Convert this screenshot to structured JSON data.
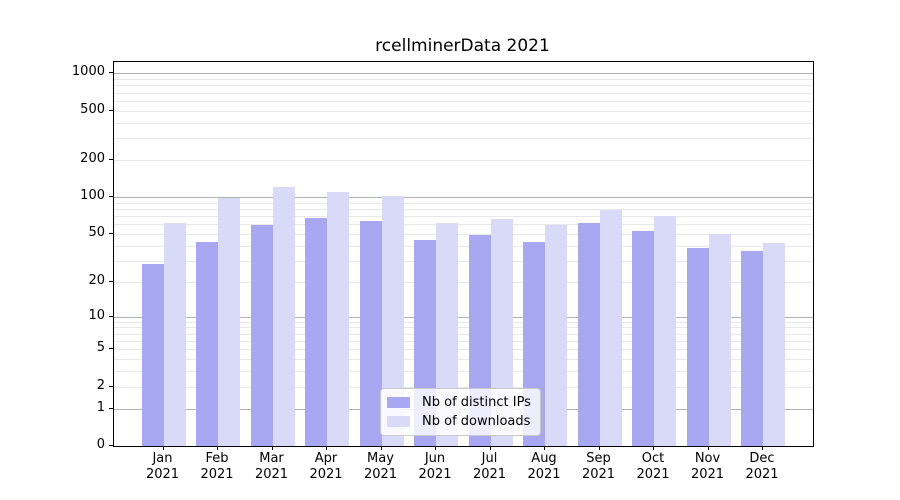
{
  "title": "rcellminerData 2021",
  "chart_data": {
    "type": "bar",
    "title": "rcellminerData 2021",
    "scale": "log1p",
    "months": [
      "Jan",
      "Feb",
      "Mar",
      "Apr",
      "May",
      "Jun",
      "Jul",
      "Aug",
      "Sep",
      "Oct",
      "Nov",
      "Dec"
    ],
    "year_label": "2021",
    "series": [
      {
        "name": "Nb of distinct IPs",
        "color": "#a7a7f2",
        "values": [
          28,
          43,
          59,
          68,
          64,
          45,
          49,
          43,
          61,
          53,
          38,
          36
        ]
      },
      {
        "name": "Nb of downloads",
        "color": "#d9d9f8",
        "values": [
          62,
          98,
          120,
          111,
          103,
          61,
          66,
          59,
          78,
          70,
          50,
          42
        ]
      }
    ],
    "y_ticks": [
      0,
      1,
      2,
      5,
      10,
      20,
      50,
      100,
      200,
      500,
      1000
    ],
    "major_gridlines": [
      1,
      10,
      100,
      1000
    ],
    "minor_gridlines": [
      2,
      3,
      4,
      5,
      6,
      7,
      8,
      9,
      20,
      30,
      40,
      50,
      60,
      70,
      80,
      90,
      200,
      300,
      400,
      500,
      600,
      700,
      800,
      900
    ],
    "ylim": [
      0,
      1235
    ],
    "xlabel": "",
    "ylabel": "",
    "grid": true,
    "legend_position": "bottom-center"
  },
  "colors": {
    "background": "#ffffff",
    "axis": "#000000",
    "major_grid": "#b0b0b0",
    "minor_grid": "#e8e8e8",
    "bar_dark": "#a7a7f2",
    "bar_light": "#d9d9f8"
  }
}
